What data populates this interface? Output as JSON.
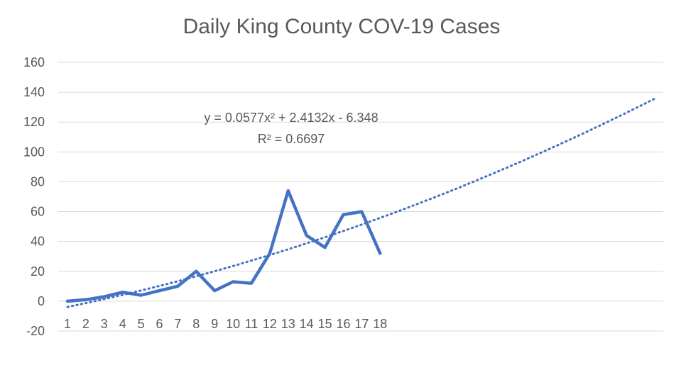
{
  "chart_data": {
    "type": "line",
    "title": "Daily King County COV-19 Cases",
    "xlabel": "",
    "ylabel": "",
    "categories": [
      "1",
      "2",
      "3",
      "4",
      "5",
      "6",
      "7",
      "8",
      "9",
      "10",
      "11",
      "12",
      "13",
      "14",
      "15",
      "16",
      "17",
      "18"
    ],
    "series": [
      {
        "values": [
          0,
          1,
          3,
          6,
          4,
          7,
          10,
          20,
          7,
          13,
          12,
          32,
          74,
          44,
          36,
          58,
          60,
          32
        ],
        "color": "#4472c4"
      }
    ],
    "trendline": {
      "type": "polynomial",
      "order": 2,
      "coefficients": {
        "a": 0.0577,
        "b": 2.4132,
        "c": -6.348
      },
      "x_range": [
        1,
        33
      ],
      "color": "#4472c4",
      "equation_label": "y = 0.0577x² + 2.4132x - 6.348",
      "r2_label": "R² = 0.6697"
    },
    "yticks": [
      "160",
      "140",
      "120",
      "100",
      "80",
      "60",
      "40",
      "20",
      "0",
      "-20"
    ],
    "ylim": [
      -20,
      160
    ],
    "grid": true,
    "legend": "none"
  }
}
